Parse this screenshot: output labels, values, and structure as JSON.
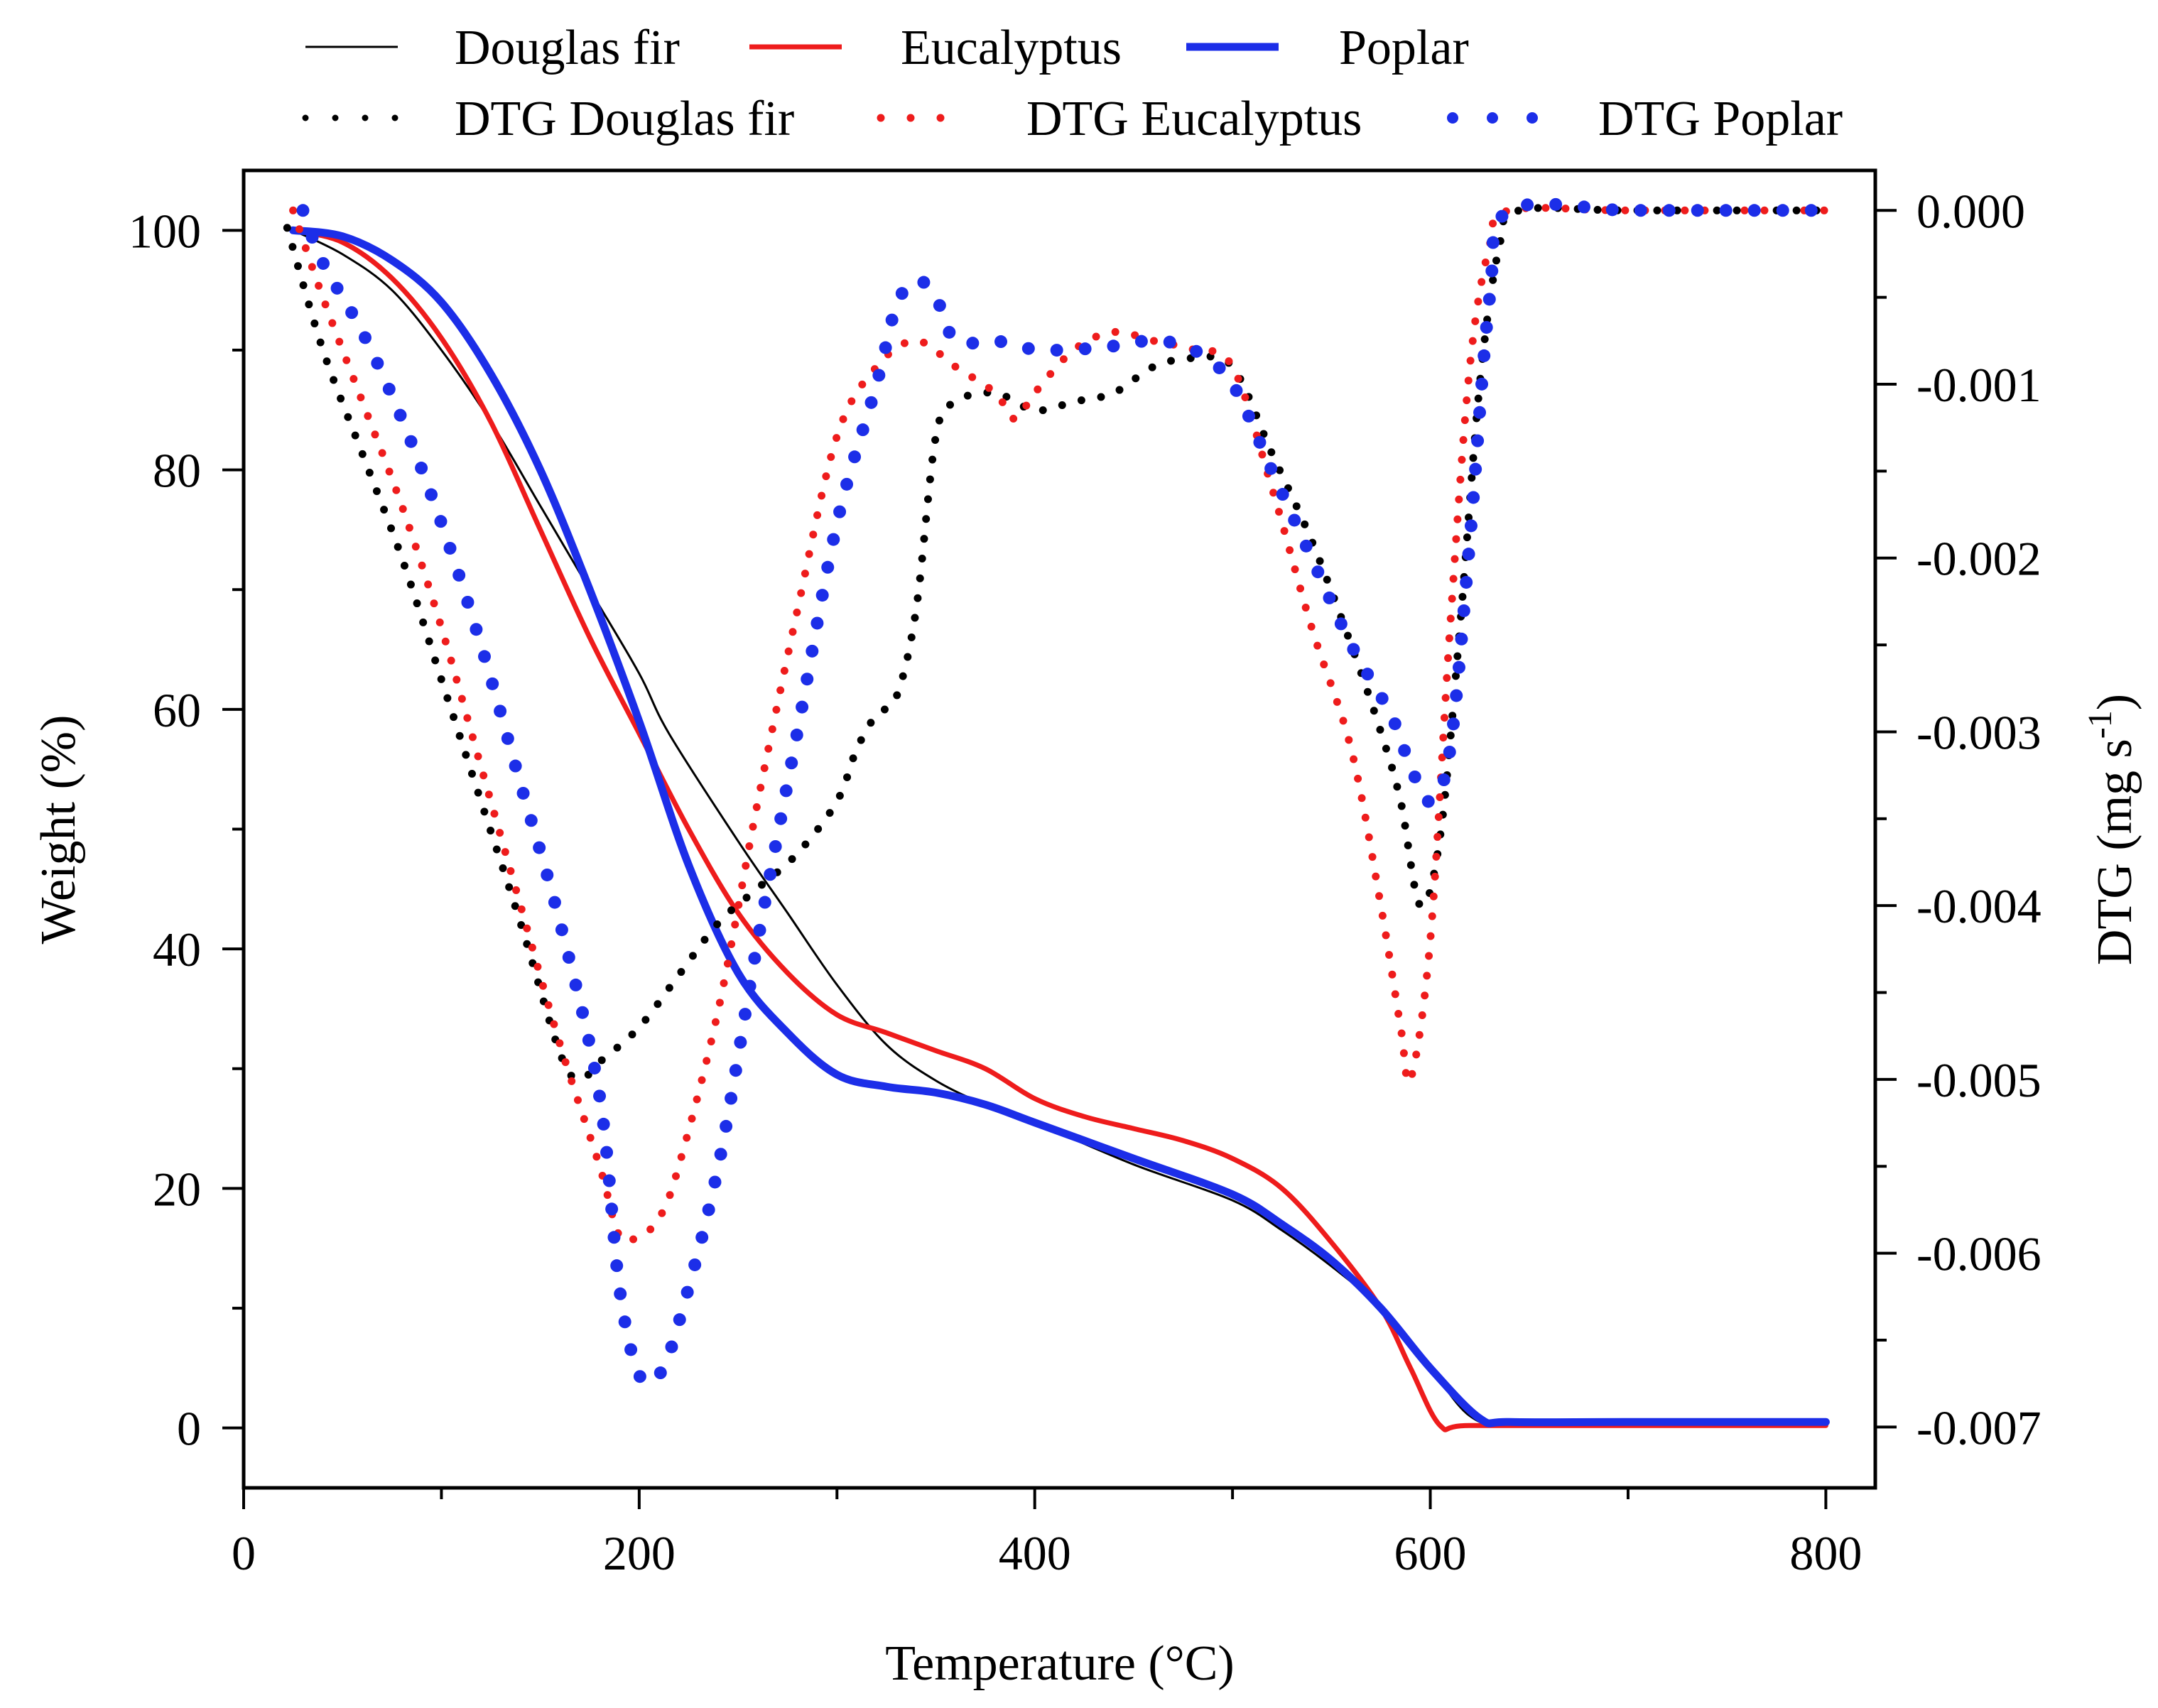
{
  "chart_data": {
    "type": "line",
    "title": "",
    "xlabel": "Temperature (°C)",
    "ylabel": "Weight (%)",
    "y2label": "DTG (mg s",
    "y2label_sup": "-1",
    "y2label_close": ")",
    "xlim": [
      0,
      825
    ],
    "ylim": [
      -5,
      105
    ],
    "y2lim": [
      -0.00735,
      0.00023
    ],
    "xticks": [
      0,
      200,
      400,
      600,
      800
    ],
    "xtick_labels": [
      "0",
      "200",
      "400",
      "600",
      "800"
    ],
    "yticks": [
      0,
      20,
      40,
      60,
      80,
      100
    ],
    "ytick_labels": [
      "0",
      "20",
      "40",
      "60",
      "80",
      "100"
    ],
    "y2ticks": [
      0,
      -0.001,
      -0.002,
      -0.003,
      -0.004,
      -0.005,
      -0.006,
      -0.007
    ],
    "y2tick_labels": [
      "0.000",
      "-0.001",
      "-0.002",
      "-0.003",
      "-0.004",
      "-0.005",
      "-0.006",
      "-0.007"
    ],
    "legend_position": "top, above plot area",
    "series": [
      {
        "name": "Douglas fir",
        "axis": "left",
        "style": "solid-thin",
        "color": "#000000",
        "x": [
          25,
          50,
          75,
          100,
          125,
          150,
          175,
          200,
          215,
          250,
          275,
          300,
          325,
          350,
          375,
          400,
          450,
          500,
          525,
          550,
          575,
          600,
          620,
          640,
          700,
          800
        ],
        "y": [
          100,
          98,
          95,
          90,
          84,
          77,
          70,
          63,
          58,
          49,
          43,
          37,
          32,
          29,
          27,
          25.5,
          22,
          19,
          16.5,
          13.5,
          10,
          5,
          1,
          0.3,
          0.3,
          0.3
        ]
      },
      {
        "name": "Eucalyptus",
        "axis": "left",
        "style": "solid",
        "color": "#ee1c1c",
        "x": [
          25,
          50,
          75,
          100,
          125,
          150,
          175,
          200,
          225,
          250,
          275,
          300,
          325,
          350,
          375,
          400,
          425,
          450,
          475,
          500,
          525,
          550,
          575,
          590,
          605,
          620,
          700,
          800
        ],
        "y": [
          100,
          99,
          96,
          91,
          84,
          75,
          66,
          58,
          50,
          43,
          38,
          34.5,
          33,
          31.5,
          30,
          27.5,
          26,
          25,
          24,
          22.5,
          20,
          15.5,
          10,
          5,
          0.2,
          0.2,
          0.2,
          0.2
        ]
      },
      {
        "name": "Poplar",
        "axis": "left",
        "style": "solid-thick",
        "color": "#1c2ee8",
        "x": [
          25,
          50,
          75,
          100,
          125,
          150,
          175,
          200,
          225,
          250,
          275,
          300,
          325,
          350,
          375,
          400,
          450,
          500,
          525,
          550,
          575,
          600,
          625,
          640,
          700,
          800
        ],
        "y": [
          100,
          99.5,
          97.5,
          94,
          88,
          80,
          70,
          59,
          47,
          38,
          33,
          29.5,
          28.5,
          28,
          27,
          25.5,
          22.5,
          19.5,
          17,
          14,
          10,
          5,
          0.8,
          0.5,
          0.5,
          0.5
        ]
      },
      {
        "name": "DTG Douglas fir",
        "axis": "right",
        "style": "dotted",
        "color": "#000000",
        "x": [
          22,
          40,
          60,
          80,
          100,
          120,
          140,
          160,
          170,
          180,
          200,
          220,
          240,
          260,
          280,
          300,
          310,
          320,
          330,
          340,
          350,
          360,
          380,
          400,
          420,
          440,
          460,
          480,
          500,
          520,
          540,
          560,
          575,
          585,
          595,
          605,
          615,
          625,
          635,
          645,
          700,
          800
        ],
        "y": [
          -0.0001,
          -0.0008,
          -0.0014,
          -0.002,
          -0.0027,
          -0.0034,
          -0.0041,
          -0.00485,
          -0.005,
          -0.0049,
          -0.0047,
          -0.0044,
          -0.0041,
          -0.0039,
          -0.0037,
          -0.0034,
          -0.0031,
          -0.0029,
          -0.0028,
          -0.0023,
          -0.0013,
          -0.0011,
          -0.00105,
          -0.00115,
          -0.0011,
          -0.00105,
          -0.0009,
          -0.00085,
          -0.0009,
          -0.0014,
          -0.0019,
          -0.0025,
          -0.003,
          -0.0034,
          -0.004,
          -0.0036,
          -0.0024,
          -0.001,
          -0.0002,
          0.0,
          0.0,
          0.0
        ]
      },
      {
        "name": "DTG Eucalyptus",
        "axis": "right",
        "style": "dotted",
        "color": "#ee1c1c",
        "x": [
          25,
          40,
          60,
          80,
          100,
          120,
          140,
          160,
          180,
          190,
          200,
          210,
          220,
          240,
          260,
          280,
          300,
          320,
          340,
          360,
          380,
          390,
          400,
          420,
          440,
          460,
          480,
          500,
          520,
          540,
          560,
          575,
          585,
          590,
          600,
          610,
          620,
          630,
          640,
          700,
          800
        ],
        "y": [
          0.0,
          -0.0005,
          -0.0011,
          -0.0017,
          -0.0024,
          -0.0032,
          -0.004,
          -0.0048,
          -0.0055,
          -0.0059,
          -0.0059,
          -0.0058,
          -0.0055,
          -0.0046,
          -0.0034,
          -0.0023,
          -0.0013,
          -0.0009,
          -0.00075,
          -0.0009,
          -0.00105,
          -0.0012,
          -0.00105,
          -0.0008,
          -0.0007,
          -0.00075,
          -0.0008,
          -0.0009,
          -0.0016,
          -0.0024,
          -0.0031,
          -0.004,
          -0.0047,
          -0.005,
          -0.0042,
          -0.0024,
          -0.0009,
          -0.0002,
          0.0,
          0.0,
          0.0
        ]
      },
      {
        "name": "DTG Poplar",
        "axis": "right",
        "style": "dotted-thick",
        "color": "#1c2ee8",
        "x": [
          30,
          40,
          60,
          80,
          100,
          120,
          140,
          160,
          180,
          190,
          200,
          210,
          220,
          240,
          260,
          280,
          300,
          320,
          330,
          340,
          350,
          360,
          380,
          400,
          420,
          440,
          460,
          480,
          500,
          520,
          540,
          560,
          580,
          590,
          600,
          610,
          620,
          630,
          640,
          700,
          750,
          800
        ],
        "y": [
          0.0,
          -0.0003,
          -0.0007,
          -0.0012,
          -0.0018,
          -0.0025,
          -0.0033,
          -0.0041,
          -0.0051,
          -0.0062,
          -0.0067,
          -0.0067,
          -0.0064,
          -0.0055,
          -0.0042,
          -0.003,
          -0.0018,
          -0.001,
          -0.00055,
          -0.0004,
          -0.0005,
          -0.00075,
          -0.00075,
          -0.0008,
          -0.0008,
          -0.00078,
          -0.00075,
          -0.0008,
          -0.001,
          -0.0015,
          -0.002,
          -0.0025,
          -0.0029,
          -0.0032,
          -0.0034,
          -0.0031,
          -0.0019,
          -0.0005,
          0.0,
          0.0,
          0.0,
          0.0
        ]
      }
    ]
  }
}
